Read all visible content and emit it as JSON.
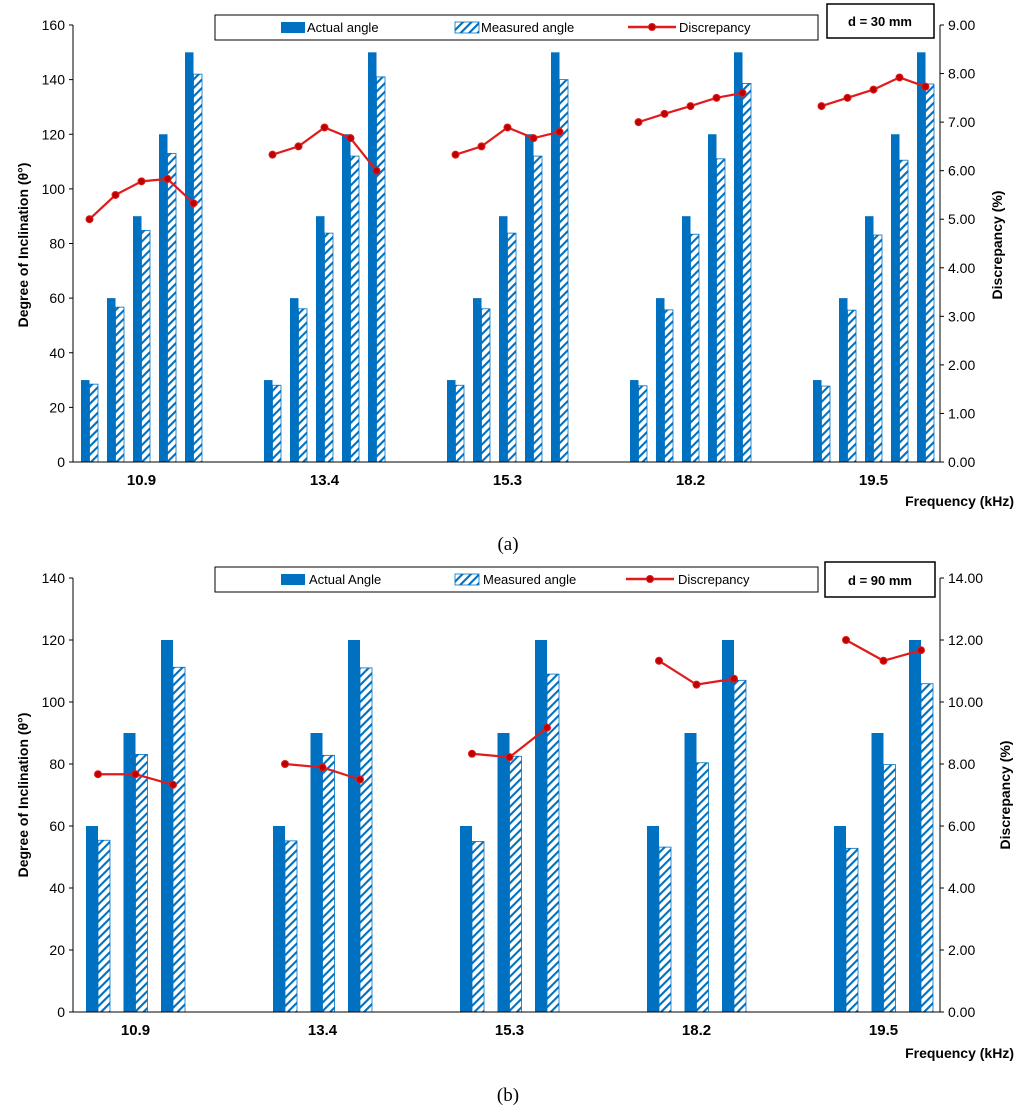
{
  "colors": {
    "bar": "#0070C0",
    "line": "#E11B1B",
    "marker": "#C00000",
    "hatch_bg": "#ffffff"
  },
  "chart_data": [
    {
      "type": "bar",
      "panel_label": "a",
      "caption": "(a)",
      "distance_label": "d = 30 mm",
      "categories": [
        "10.9",
        "13.4",
        "15.3",
        "18.2",
        "19.5"
      ],
      "subgroups": [
        30,
        60,
        90,
        120,
        150
      ],
      "series": [
        {
          "name": "Actual angle",
          "kind": "bar",
          "values": [
            [
              30,
              60,
              90,
              120,
              150
            ],
            [
              30,
              60,
              90,
              120,
              150
            ],
            [
              30,
              60,
              90,
              120,
              150
            ],
            [
              30,
              60,
              90,
              120,
              150
            ],
            [
              30,
              60,
              90,
              120,
              150
            ]
          ]
        },
        {
          "name": "Measured angle",
          "kind": "bar-hatched",
          "values": [
            [
              28.5,
              56.7,
              84.8,
              113.0,
              142.0
            ],
            [
              28.1,
              56.1,
              83.8,
              112.0,
              141.0
            ],
            [
              28.1,
              56.1,
              83.8,
              112.0,
              140.0
            ],
            [
              27.9,
              55.7,
              83.4,
              111.0,
              138.6
            ],
            [
              27.8,
              55.6,
              83.1,
              110.5,
              138.4
            ]
          ]
        },
        {
          "name": "Discrepancy",
          "kind": "line",
          "axis": "right",
          "values": [
            [
              5.0,
              5.5,
              5.78,
              5.83,
              5.33
            ],
            [
              6.33,
              6.5,
              6.89,
              6.67,
              6.0
            ],
            [
              6.33,
              6.5,
              6.89,
              6.67,
              6.8
            ],
            [
              7.0,
              7.17,
              7.33,
              7.5,
              7.6
            ],
            [
              7.33,
              7.5,
              7.67,
              7.92,
              7.73
            ]
          ]
        }
      ],
      "ylabel": "Degree of Inclination (θ°)",
      "y2label": "Discrepancy (%)",
      "xlabel": "Frequency (kHz)",
      "ylim": [
        0,
        160
      ],
      "yticks": [
        "0",
        "20",
        "40",
        "60",
        "80",
        "100",
        "120",
        "140",
        "160"
      ],
      "y2lim": [
        0,
        9
      ],
      "y2ticks": [
        "0.00",
        "1.00",
        "2.00",
        "3.00",
        "4.00",
        "5.00",
        "6.00",
        "7.00",
        "8.00",
        "9.00"
      ],
      "legend_position": "top"
    },
    {
      "type": "bar",
      "panel_label": "b",
      "caption": "(b)",
      "distance_label": "d = 90 mm",
      "categories": [
        "10.9",
        "13.4",
        "15.3",
        "18.2",
        "19.5"
      ],
      "subgroups": [
        60,
        90,
        120
      ],
      "series": [
        {
          "name": "Actual Angle",
          "kind": "bar",
          "values": [
            [
              60,
              90,
              120
            ],
            [
              60,
              90,
              120
            ],
            [
              60,
              90,
              120
            ],
            [
              60,
              90,
              120
            ],
            [
              60,
              90,
              120
            ]
          ]
        },
        {
          "name": "Measured angle",
          "kind": "bar-hatched",
          "values": [
            [
              55.4,
              83.1,
              111.2
            ],
            [
              55.2,
              82.8,
              111.0
            ],
            [
              55.0,
              82.5,
              109.0
            ],
            [
              53.2,
              80.4,
              107.0
            ],
            [
              52.8,
              79.8,
              105.9
            ]
          ]
        },
        {
          "name": "Discrepancy",
          "kind": "line",
          "axis": "right",
          "values": [
            [
              7.67,
              7.67,
              7.33
            ],
            [
              8.0,
              7.89,
              7.5
            ],
            [
              8.33,
              8.22,
              9.17
            ],
            [
              11.33,
              10.56,
              10.75
            ],
            [
              12.0,
              11.33,
              11.67
            ]
          ]
        }
      ],
      "ylabel": "Degree of Inclination (θ°)",
      "y2label": "Discrepancy (%)",
      "xlabel": "Frequency (kHz)",
      "ylim": [
        0,
        140
      ],
      "yticks": [
        "0",
        "20",
        "40",
        "60",
        "80",
        "100",
        "120",
        "140"
      ],
      "y2lim": [
        0,
        14
      ],
      "y2ticks": [
        "0.00",
        "2.00",
        "4.00",
        "6.00",
        "8.00",
        "10.00",
        "12.00",
        "14.00"
      ],
      "legend_position": "top"
    }
  ]
}
